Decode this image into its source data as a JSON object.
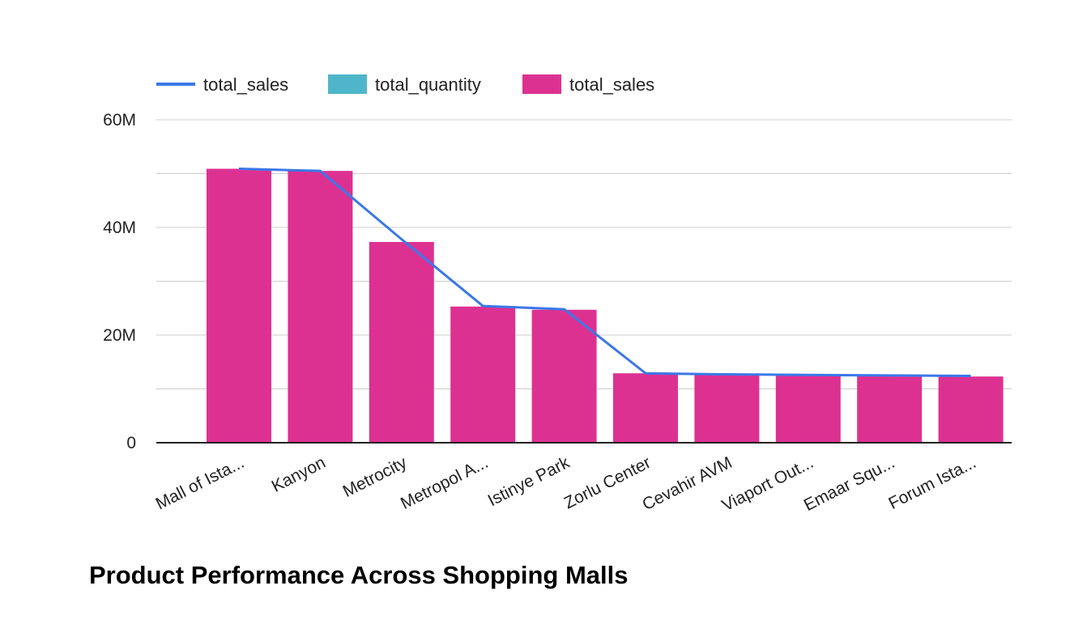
{
  "chart_data": {
    "type": "bar",
    "title": "Product Performance Across Shopping Malls",
    "categories": [
      "Mall of Ista...",
      "Kanyon",
      "Metrocity",
      "Metropol A...",
      "Istinye Park",
      "Zorlu Center",
      "Cevahir AVM",
      "Viaport Out...",
      "Emaar Squ...",
      "Forum Ista..."
    ],
    "series": [
      {
        "name": "total_sales",
        "kind": "line",
        "color": "#3b78e7",
        "values": [
          50900000,
          50500000,
          37800000,
          25400000,
          24800000,
          12900000,
          12700000,
          12600000,
          12500000,
          12400000
        ]
      },
      {
        "name": "total_quantity",
        "kind": "bar",
        "color": "#4fb6c9",
        "values": [
          0,
          0,
          0,
          0,
          0,
          0,
          0,
          0,
          0,
          0
        ]
      },
      {
        "name": "total_sales",
        "kind": "bar",
        "color": "#dd3192",
        "values": [
          50900000,
          50500000,
          37300000,
          25300000,
          24700000,
          12900000,
          12700000,
          12600000,
          12500000,
          12300000
        ]
      }
    ],
    "y_ticks": [
      {
        "value": 0,
        "label": "0"
      },
      {
        "value": 20000000,
        "label": "20M"
      },
      {
        "value": 40000000,
        "label": "40M"
      },
      {
        "value": 60000000,
        "label": "60M"
      }
    ],
    "ylim": [
      0,
      60000000
    ],
    "grid_step": 10000000,
    "grid": true,
    "legend_position": "top-left",
    "xlabel": "",
    "ylabel": ""
  }
}
